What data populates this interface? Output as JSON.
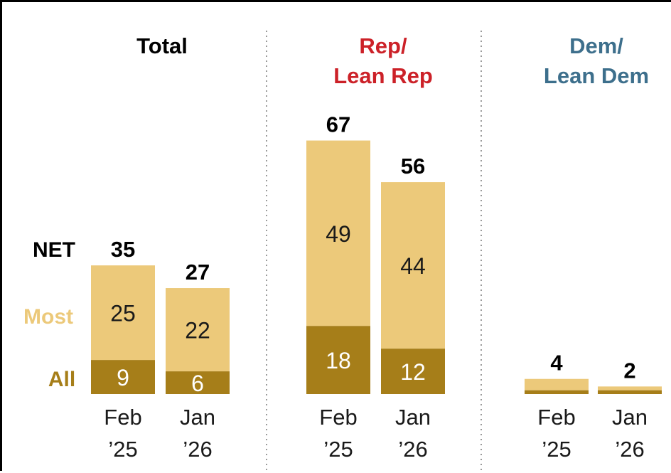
{
  "chart_data": {
    "type": "bar",
    "stacked": true,
    "legend": {
      "net": "NET",
      "most": "Most",
      "all": "All"
    },
    "categories": [
      "Feb ’25",
      "Jan ’26"
    ],
    "panels": [
      {
        "title_lines": [
          "Total"
        ],
        "title_color": "#000000",
        "bars": [
          {
            "x_lines": [
              "Feb",
              "’25"
            ],
            "all": 9,
            "most": 25,
            "net": 35,
            "all_label": "9",
            "most_label": "25",
            "net_label": "35"
          },
          {
            "x_lines": [
              "Jan",
              "’26"
            ],
            "all": 6,
            "most": 22,
            "net": 27,
            "all_label": "6",
            "most_label": "22",
            "net_label": "27"
          }
        ]
      },
      {
        "title_lines": [
          "Rep/",
          "Lean Rep"
        ],
        "title_color": "#cc2128",
        "bars": [
          {
            "x_lines": [
              "Feb",
              "’25"
            ],
            "all": 18,
            "most": 49,
            "net": 67,
            "all_label": "18",
            "most_label": "49",
            "net_label": "67"
          },
          {
            "x_lines": [
              "Jan",
              "’26"
            ],
            "all": 12,
            "most": 44,
            "net": 56,
            "all_label": "12",
            "most_label": "44",
            "net_label": "56"
          }
        ]
      },
      {
        "title_lines": [
          "Dem/",
          "Lean Dem"
        ],
        "title_color": "#3d6f8c",
        "bars": [
          {
            "x_lines": [
              "Feb",
              "’25"
            ],
            "all": 1,
            "most": 3,
            "net": 4,
            "all_label": "",
            "most_label": "",
            "net_label": "4"
          },
          {
            "x_lines": [
              "Jan",
              "’26"
            ],
            "all": 1,
            "most": 1,
            "net": 2,
            "all_label": "",
            "most_label": "",
            "net_label": "2"
          }
        ]
      }
    ],
    "colors": {
      "most": "#ecc97a",
      "all": "#a67e19",
      "net_text": "#000000",
      "all_text": "#ffffff",
      "most_text": "#1a1a1a"
    },
    "grid": false
  }
}
